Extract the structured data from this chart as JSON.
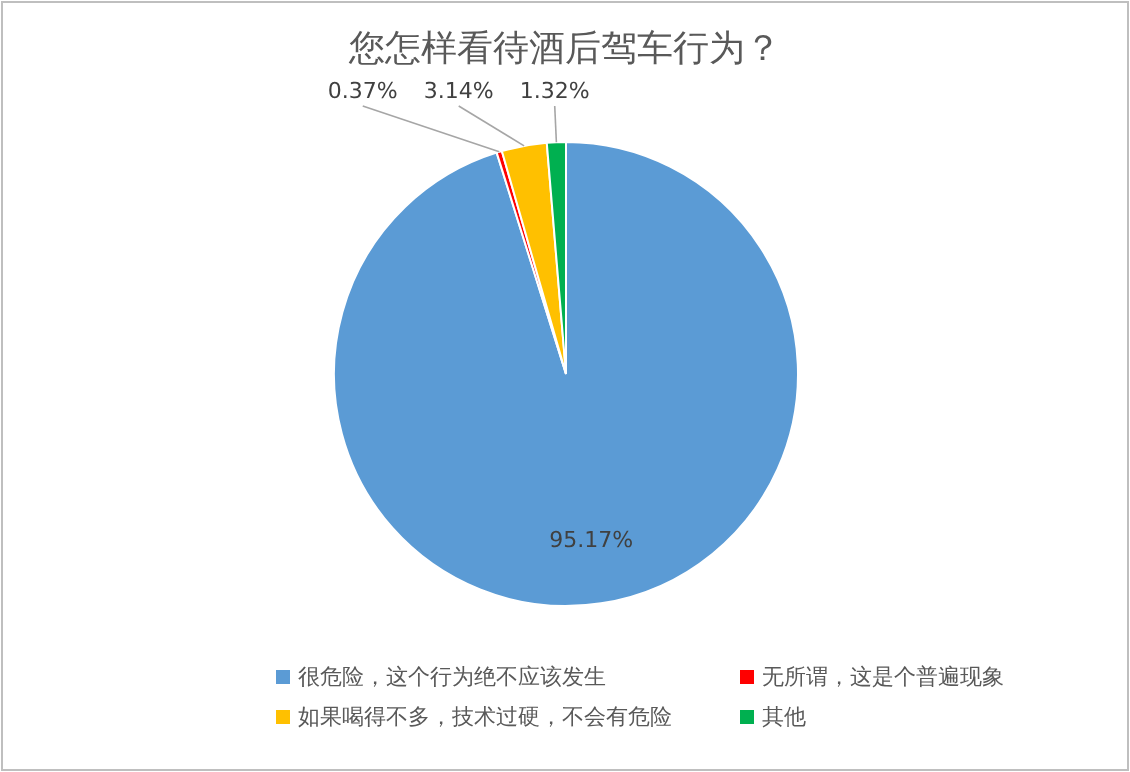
{
  "chart_data": {
    "type": "pie",
    "title": "您怎样看待酒后驾车行为？",
    "categories": [
      "很危险，这个行为绝不应该发生",
      "无所谓，这是个普遍现象",
      "如果喝得不多，技术过硬，不会有危险",
      "其他"
    ],
    "values": [
      95.17,
      0.37,
      3.14,
      1.32
    ],
    "colors": [
      "#5b9bd5",
      "#ff0000",
      "#ffc000",
      "#00b050"
    ],
    "value_labels": [
      "95.17%",
      "0.37%",
      "3.14%",
      "1.32%"
    ],
    "legend": "bottom"
  }
}
